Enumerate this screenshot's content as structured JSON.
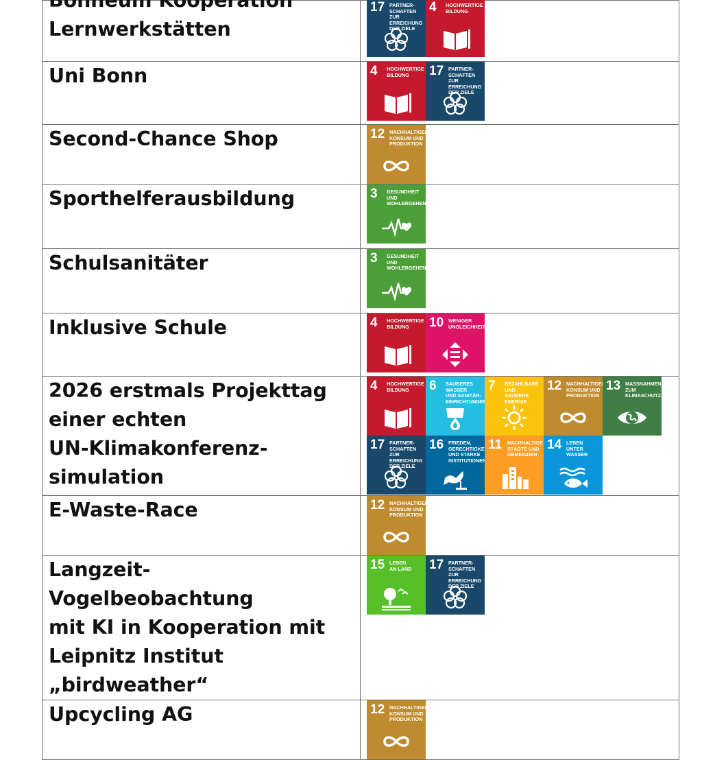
{
  "sdg_goals": {
    "3": {
      "number": "3",
      "label": "GESUNDHEIT UND\nWOHLERGEHEN",
      "color": "#4c9f38",
      "icon": "heartbeat-icon"
    },
    "4": {
      "number": "4",
      "label": "HOCHWERTIGE\nBILDUNG",
      "color": "#c5192d",
      "icon": "book-icon"
    },
    "6": {
      "number": "6",
      "label": "SAUBERES WASSER\nUND SANITÄR-\nEINRICHTUNGEN",
      "color": "#26bde2",
      "icon": "water-drop-icon"
    },
    "7": {
      "number": "7",
      "label": "BEZAHLBARE UND\nSAUBERE ENERGIE",
      "color": "#fcc30b",
      "icon": "sun-icon"
    },
    "10": {
      "number": "10",
      "label": "WENIGER\nUNGLEICHHEITEN",
      "color": "#dd1367",
      "icon": "equality-icon"
    },
    "11": {
      "number": "11",
      "label": "NACHHALTIGE\nSTÄDTE UND\nGEMEINDEN",
      "color": "#fd9d24",
      "icon": "buildings-icon"
    },
    "12": {
      "number": "12",
      "label": "NACHHALTIGE/R\nKONSUM UND\nPRODUKTION",
      "color": "#bf8b2e",
      "icon": "infinity-icon"
    },
    "13": {
      "number": "13",
      "label": "MASSNAHMEN ZUM\nKLIMASCHUTZ",
      "color": "#3f7e44",
      "icon": "eye-globe-icon"
    },
    "14": {
      "number": "14",
      "label": "LEBEN UNTER\nWASSER",
      "color": "#0a97d9",
      "icon": "fish-icon"
    },
    "15": {
      "number": "15",
      "label": "LEBEN\nAN LAND",
      "color": "#56c02b",
      "icon": "tree-icon"
    },
    "16": {
      "number": "16",
      "label": "FRIEDEN,\nGERECHTIGKEIT\nUND STARKE\nINSTITUTIONEN",
      "color": "#00689d",
      "icon": "dove-icon"
    },
    "17": {
      "number": "17",
      "label": "PARTNER-\nSCHAFTEN\nZUR ERREICHUNG\nDER ZIELE",
      "color": "#19486a",
      "icon": "flower-icon"
    }
  },
  "rows": [
    {
      "project": "Bonneum Kooperation\nLernwerkstätten",
      "sdgs": [
        "17",
        "4"
      ]
    },
    {
      "project": "Uni Bonn",
      "sdgs": [
        "4",
        "17"
      ]
    },
    {
      "project": "Second-Chance Shop",
      "sdgs": [
        "12"
      ]
    },
    {
      "project": "Sporthelferausbildung",
      "sdgs": [
        "3"
      ]
    },
    {
      "project": "Schulsanitäter",
      "sdgs": [
        "3"
      ]
    },
    {
      "project": "Inklusive Schule",
      "sdgs": [
        "4",
        "10"
      ]
    },
    {
      "project": "2026 erstmals Projekttag\neiner echten\nUN-Klimakonferenz-\nsimulation",
      "sdgs": [
        "4",
        "6",
        "7",
        "12",
        "13",
        "17",
        "16",
        "11",
        "14"
      ]
    },
    {
      "project": "E-Waste-Race",
      "sdgs": [
        "12"
      ]
    },
    {
      "project": "Langzeit- Vogelbeobachtung\nmit KI in Kooperation mit\nLeipnitz Institut\n„birdweather“",
      "sdgs": [
        "15",
        "17"
      ]
    },
    {
      "project": "Upcycling AG",
      "sdgs": [
        "12"
      ]
    }
  ]
}
